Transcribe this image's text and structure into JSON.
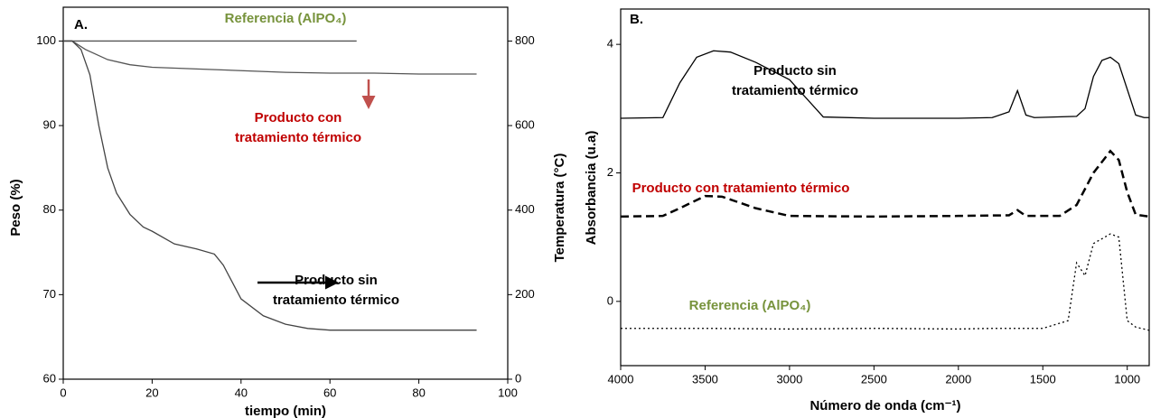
{
  "chart_data": [
    {
      "type": "line",
      "title": "A.",
      "xlabel": "tiempo (min)",
      "ylabel": "Peso (%)",
      "y2label": "Temperatura (°C)",
      "xlim": [
        0,
        100
      ],
      "xticks": [
        0,
        20,
        40,
        60,
        80,
        100
      ],
      "ylim": [
        60,
        104
      ],
      "yticks": [
        60,
        70,
        80,
        90,
        100
      ],
      "y2lim": [
        0,
        880
      ],
      "y2ticks": [
        0,
        200,
        400,
        600,
        800
      ],
      "series": [
        {
          "name": "Referencia (AlPO₄)",
          "color": "#555555",
          "label_color": "#77933c",
          "dash": "solid",
          "x": [
            0,
            10,
            20,
            30,
            40,
            50,
            60,
            66
          ],
          "values": [
            100,
            100,
            100,
            100,
            100,
            100,
            100,
            100
          ]
        },
        {
          "name": "Producto con tratamiento térmico",
          "color": "#555555",
          "label_color": "#c00000",
          "dash": "solid",
          "x": [
            0,
            2,
            5,
            10,
            15,
            20,
            30,
            40,
            50,
            60,
            70,
            80,
            93
          ],
          "values": [
            100,
            100,
            99.0,
            97.8,
            97.2,
            96.9,
            96.7,
            96.5,
            96.3,
            96.2,
            96.2,
            96.1,
            96.1
          ]
        },
        {
          "name": "Producto sin tratamiento térmico",
          "color": "#444444",
          "label_color": "#000000",
          "dash": "solid",
          "x": [
            0,
            2,
            4,
            6,
            8,
            10,
            12,
            15,
            18,
            20,
            25,
            30,
            34,
            36,
            38,
            40,
            45,
            50,
            55,
            60,
            70,
            80,
            93
          ],
          "values": [
            100,
            100,
            99,
            96,
            90,
            85,
            82,
            79.5,
            78,
            77.5,
            76,
            75.4,
            74.8,
            73.5,
            71.5,
            69.5,
            67.5,
            66.5,
            66,
            65.8,
            65.8,
            65.8,
            65.8
          ]
        }
      ]
    },
    {
      "type": "line",
      "title": "B.",
      "xlabel": "Número de onda (cm⁻¹)",
      "ylabel": "Absorbancia (u.a)",
      "xlim": [
        4000,
        870
      ],
      "xticks": [
        4000,
        3500,
        3000,
        2500,
        2000,
        1500,
        1000
      ],
      "ylim": [
        -1,
        4.55
      ],
      "yticks": [
        0,
        2,
        4
      ],
      "series": [
        {
          "name": "Producto sin tratamiento térmico",
          "color": "#000000",
          "label_color": "#000000",
          "dash": "solid",
          "x": [
            4000,
            3750,
            3650,
            3550,
            3450,
            3350,
            3200,
            3000,
            2800,
            2500,
            2000,
            1800,
            1700,
            1650,
            1600,
            1550,
            1300,
            1250,
            1200,
            1150,
            1100,
            1050,
            1000,
            950,
            900,
            870
          ],
          "values": [
            2.85,
            2.86,
            3.4,
            3.8,
            3.9,
            3.88,
            3.72,
            3.45,
            2.87,
            2.85,
            2.85,
            2.86,
            2.95,
            3.28,
            2.9,
            2.86,
            2.88,
            3.0,
            3.5,
            3.75,
            3.8,
            3.7,
            3.3,
            2.9,
            2.86,
            2.86
          ]
        },
        {
          "name": "Producto con tratamiento térmico",
          "color": "#000000",
          "label_color": "#c00000",
          "dash": "dash",
          "x": [
            4000,
            3750,
            3650,
            3500,
            3400,
            3200,
            3000,
            2500,
            2000,
            1700,
            1650,
            1600,
            1400,
            1300,
            1200,
            1100,
            1050,
            1000,
            950,
            870
          ],
          "values": [
            1.32,
            1.33,
            1.45,
            1.64,
            1.63,
            1.45,
            1.33,
            1.32,
            1.33,
            1.34,
            1.42,
            1.33,
            1.33,
            1.5,
            2.0,
            2.34,
            2.2,
            1.7,
            1.35,
            1.32
          ]
        },
        {
          "name": "Referencia (AlPO₄)",
          "color": "#000000",
          "label_color": "#77933c",
          "dash": "dot",
          "x": [
            4000,
            3500,
            3000,
            2500,
            2000,
            1800,
            1500,
            1350,
            1300,
            1250,
            1200,
            1100,
            1050,
            1000,
            950,
            870
          ],
          "values": [
            -0.42,
            -0.42,
            -0.43,
            -0.42,
            -0.43,
            -0.42,
            -0.42,
            -0.3,
            0.6,
            0.4,
            0.9,
            1.05,
            1.0,
            -0.3,
            -0.4,
            -0.45
          ]
        }
      ]
    }
  ]
}
